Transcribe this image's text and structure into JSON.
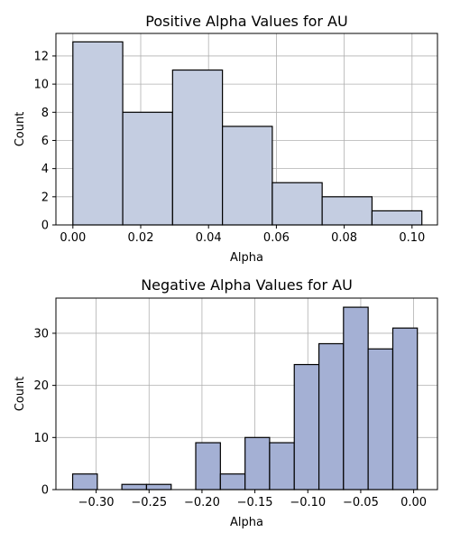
{
  "chart_data": [
    {
      "type": "histogram",
      "title": "Positive Alpha Values for AU",
      "xlabel": "Alpha",
      "ylabel": "Count",
      "xlim": [
        -0.005,
        0.1075
      ],
      "ylim": [
        0,
        13.6
      ],
      "xticks": [
        0.0,
        0.02,
        0.04,
        0.06,
        0.08,
        0.1
      ],
      "xtick_labels": [
        "0.00",
        "0.02",
        "0.04",
        "0.06",
        "0.08",
        "0.10"
      ],
      "yticks": [
        0,
        2,
        4,
        6,
        8,
        10,
        12
      ],
      "ytick_labels": [
        "0",
        "2",
        "4",
        "6",
        "8",
        "10",
        "12"
      ],
      "grid": true,
      "bar_color": "#c4cde1",
      "edge_color": "#000000",
      "bins": [
        {
          "x0": 0.0,
          "x1": 0.0147,
          "count": 13
        },
        {
          "x0": 0.0147,
          "x1": 0.0294,
          "count": 8
        },
        {
          "x0": 0.0294,
          "x1": 0.0441,
          "count": 11
        },
        {
          "x0": 0.0441,
          "x1": 0.0588,
          "count": 7
        },
        {
          "x0": 0.0588,
          "x1": 0.0735,
          "count": 3
        },
        {
          "x0": 0.0735,
          "x1": 0.0882,
          "count": 2
        },
        {
          "x0": 0.0882,
          "x1": 0.1029,
          "count": 1
        }
      ]
    },
    {
      "type": "histogram",
      "title": "Negative Alpha Values for AU",
      "xlabel": "Alpha",
      "ylabel": "Count",
      "xlim": [
        -0.338,
        0.0225
      ],
      "ylim": [
        0,
        36.75
      ],
      "xticks": [
        -0.3,
        -0.25,
        -0.2,
        -0.15,
        -0.1,
        -0.05,
        0.0
      ],
      "xtick_labels": [
        "−0.30",
        "−0.25",
        "−0.20",
        "−0.15",
        "−0.10",
        "−0.05",
        "0.00"
      ],
      "yticks": [
        0,
        10,
        20,
        30
      ],
      "ytick_labels": [
        "0",
        "10",
        "20",
        "30"
      ],
      "grid": true,
      "bar_color": "#a4b0d4",
      "edge_color": "#000000",
      "bins": [
        {
          "x0": -0.3222,
          "x1": -0.2989,
          "count": 3
        },
        {
          "x0": -0.2989,
          "x1": -0.2757,
          "count": 0
        },
        {
          "x0": -0.2757,
          "x1": -0.2524,
          "count": 1
        },
        {
          "x0": -0.2524,
          "x1": -0.2291,
          "count": 1
        },
        {
          "x0": -0.2291,
          "x1": -0.2059,
          "count": 0
        },
        {
          "x0": -0.2059,
          "x1": -0.1826,
          "count": 9
        },
        {
          "x0": -0.1826,
          "x1": -0.1593,
          "count": 3
        },
        {
          "x0": -0.1593,
          "x1": -0.1361,
          "count": 10
        },
        {
          "x0": -0.1361,
          "x1": -0.1128,
          "count": 9
        },
        {
          "x0": -0.1128,
          "x1": -0.0895,
          "count": 24
        },
        {
          "x0": -0.0895,
          "x1": -0.0663,
          "count": 28
        },
        {
          "x0": -0.0663,
          "x1": -0.043,
          "count": 35
        },
        {
          "x0": -0.043,
          "x1": -0.0197,
          "count": 27
        },
        {
          "x0": -0.0197,
          "x1": 0.0035,
          "count": 31
        }
      ]
    }
  ]
}
